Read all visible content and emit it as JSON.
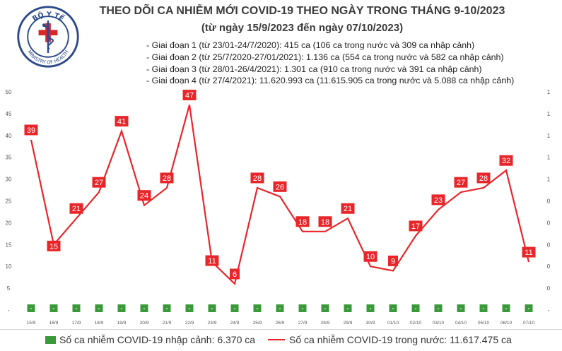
{
  "header": {
    "logo_text": "BỘ Y TẾ · MINISTRY OF HEALTH",
    "title": "THEO DÕI CA NHIỄM MỚI COVID-19 THEO NGÀY TRONG THÁNG 9-10/2023",
    "subtitle": "(từ ngày 15/9/2023 đến ngày 07/10/2023)",
    "phases": [
      "- Giai đoạn 1 (từ 23/01-24/7/2020): 415 ca (106 ca trong nước và 309 ca nhập cảnh)",
      "- Giai đoạn 2 (từ 25/7/2020-27/01/2021): 1.136 ca (554 ca trong nước và 582 ca nhập cảnh)",
      "- Giai đoạn 3 (từ 28/01-26/4/2021): 1.301 ca (910 ca trong nước và 391 ca nhập cảnh)",
      "- Giai đoạn 4 (từ 27/4/2021): 11.620.993 ca (11.615.905 ca trong nước và 5.088 ca nhập cảnh)"
    ]
  },
  "legend": {
    "imported": "Số ca nhiễm COVID-19 nhập cảnh: 6.370 ca",
    "domestic": "Số ca nhiễm COVID-19 trong nước: 11.617.475 ca"
  },
  "chart_data": {
    "type": "line",
    "categories": [
      "15/9",
      "16/9",
      "17/9",
      "18/9",
      "19/9",
      "20/9",
      "21/9",
      "22/9",
      "23/9",
      "24/9",
      "25/9",
      "26/9",
      "27/9",
      "28/9",
      "29/9",
      "30/9",
      "01/10",
      "02/10",
      "03/10",
      "04/10",
      "05/10",
      "06/10",
      "07/10"
    ],
    "series": [
      {
        "name": "Số ca nhiễm COVID-19 trong nước",
        "values": [
          39,
          15,
          21,
          27,
          41,
          24,
          28,
          47,
          11,
          6,
          28,
          26,
          18,
          18,
          21,
          10,
          9,
          17,
          23,
          27,
          28,
          32,
          11
        ],
        "color": "#e8262a"
      },
      {
        "name": "Số ca nhiễm COVID-19 nhập cảnh",
        "values": [
          0,
          0,
          0,
          0,
          0,
          0,
          0,
          0,
          0,
          0,
          0,
          0,
          0,
          0,
          0,
          0,
          0,
          0,
          0,
          0,
          0,
          0,
          0
        ],
        "labels": [
          "-",
          "-",
          "-",
          "-",
          "-",
          "-",
          "-",
          "-",
          "-",
          "-",
          "-",
          "-",
          "-",
          "-",
          "-",
          "-",
          "-",
          "-",
          "-",
          "-",
          "-",
          "-",
          "-"
        ],
        "color": "#3a9a3a"
      }
    ],
    "y_ticks": [
      "-",
      "5",
      "10",
      "15",
      "20",
      "25",
      "30",
      "35",
      "40",
      "45",
      "50"
    ],
    "y2_ticks": [
      "-",
      "0",
      "0",
      "0",
      "0",
      "0",
      "1",
      "1",
      "1",
      "1",
      "1"
    ],
    "ylim": [
      0,
      50
    ],
    "grid": false
  }
}
